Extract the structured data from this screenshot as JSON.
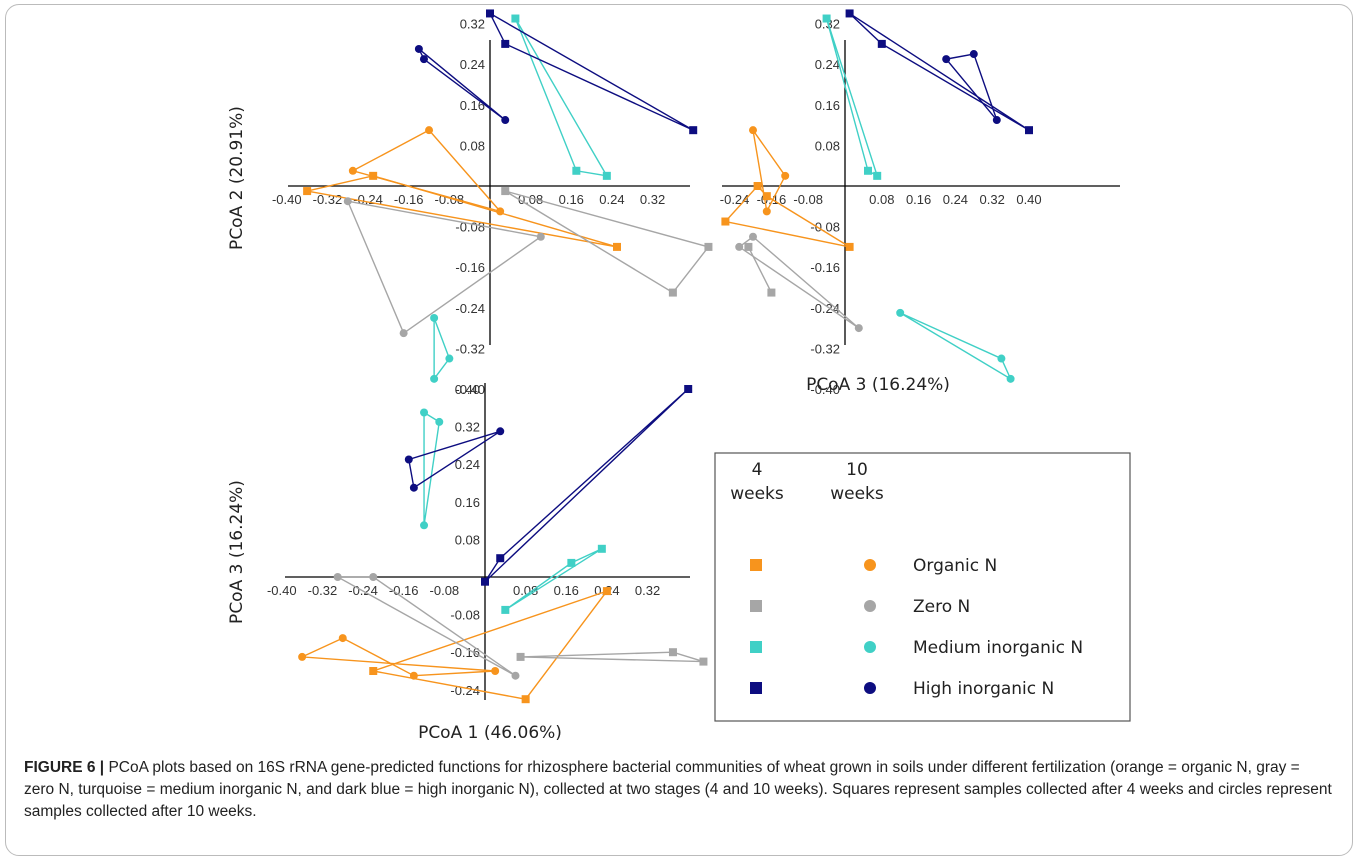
{
  "colors": {
    "organic": "#f7941d",
    "zero": "#a6a6a6",
    "medium": "#40d0c6",
    "high": "#0d0d80"
  },
  "chart_data": [
    {
      "type": "scatter",
      "panel": "top-left",
      "xlabel": "",
      "ylabel": "PCoA 2 (20.91%)",
      "x_ticks": [
        "-0.40",
        "-0.32",
        "-0.24",
        "-0.16",
        "-0.08",
        "0.08",
        "0.16",
        "0.24",
        "0.32"
      ],
      "y_ticks": [
        "0.32",
        "0.24",
        "0.16",
        "0.08",
        "-0.08",
        "-0.16",
        "-0.24",
        "-0.32",
        "-0.40"
      ],
      "xlim": [
        -0.42,
        0.4
      ],
      "ylim": [
        -0.41,
        0.36
      ],
      "series": [
        {
          "name": "Organic N",
          "week": 4,
          "marker": "square",
          "points": [
            [
              -0.36,
              -0.01
            ],
            [
              -0.23,
              0.02
            ],
            [
              0.25,
              -0.12
            ]
          ]
        },
        {
          "name": "Organic N",
          "week": 10,
          "marker": "circle",
          "points": [
            [
              -0.27,
              0.03
            ],
            [
              -0.12,
              0.11
            ],
            [
              0.02,
              -0.05
            ]
          ]
        },
        {
          "name": "Zero N",
          "week": 4,
          "marker": "square",
          "points": [
            [
              0.03,
              -0.01
            ],
            [
              0.36,
              -0.21
            ],
            [
              0.43,
              -0.12
            ]
          ]
        },
        {
          "name": "Zero N",
          "week": 10,
          "marker": "circle",
          "points": [
            [
              -0.28,
              -0.03
            ],
            [
              -0.17,
              -0.29
            ],
            [
              0.1,
              -0.1
            ]
          ]
        },
        {
          "name": "Medium inorganic N",
          "week": 4,
          "marker": "square",
          "points": [
            [
              0.05,
              0.33
            ],
            [
              0.17,
              0.03
            ],
            [
              0.23,
              0.02
            ]
          ]
        },
        {
          "name": "Medium inorganic N",
          "week": 10,
          "marker": "circle",
          "points": [
            [
              -0.11,
              -0.26
            ],
            [
              -0.08,
              -0.34
            ],
            [
              -0.11,
              -0.38
            ]
          ]
        },
        {
          "name": "High inorganic N",
          "week": 4,
          "marker": "square",
          "points": [
            [
              0.0,
              0.34
            ],
            [
              0.03,
              0.28
            ],
            [
              0.4,
              0.11
            ]
          ]
        },
        {
          "name": "High inorganic N",
          "week": 10,
          "marker": "circle",
          "points": [
            [
              -0.14,
              0.27
            ],
            [
              -0.13,
              0.25
            ],
            [
              0.03,
              0.13
            ]
          ]
        }
      ]
    },
    {
      "type": "scatter",
      "panel": "top-right",
      "xlabel": "PCoA 3 (16.24%)",
      "ylabel": "",
      "x_ticks": [
        "-0.24",
        "-0.16",
        "-0.08",
        "0.08",
        "0.16",
        "0.24",
        "0.32",
        "0.40"
      ],
      "y_ticks": [
        "0.32",
        "0.24",
        "0.16",
        "0.08",
        "-0.08",
        "-0.16",
        "-0.24",
        "-0.32",
        "-0.40"
      ],
      "xlim": [
        -0.29,
        0.46
      ],
      "ylim": [
        -0.41,
        0.36
      ],
      "series": [
        {
          "name": "Organic N",
          "week": 4,
          "marker": "square",
          "points": [
            [
              -0.26,
              -0.07
            ],
            [
              -0.19,
              0.0
            ],
            [
              -0.17,
              -0.02
            ],
            [
              0.01,
              -0.12
            ]
          ]
        },
        {
          "name": "Organic N",
          "week": 10,
          "marker": "circle",
          "points": [
            [
              -0.2,
              0.11
            ],
            [
              -0.13,
              0.02
            ],
            [
              -0.17,
              -0.05
            ]
          ]
        },
        {
          "name": "Zero N",
          "week": 4,
          "marker": "square",
          "points": [
            [
              -0.21,
              -0.12
            ],
            [
              -0.16,
              -0.21
            ]
          ]
        },
        {
          "name": "Zero N",
          "week": 10,
          "marker": "circle",
          "points": [
            [
              -0.23,
              -0.12
            ],
            [
              -0.2,
              -0.1
            ],
            [
              0.03,
              -0.28
            ]
          ]
        },
        {
          "name": "Medium inorganic N",
          "week": 4,
          "marker": "square",
          "points": [
            [
              -0.04,
              0.33
            ],
            [
              0.05,
              0.03
            ],
            [
              0.07,
              0.02
            ]
          ]
        },
        {
          "name": "Medium inorganic N",
          "week": 10,
          "marker": "circle",
          "points": [
            [
              0.12,
              -0.25
            ],
            [
              0.34,
              -0.34
            ],
            [
              0.36,
              -0.38
            ]
          ]
        },
        {
          "name": "High inorganic N",
          "week": 4,
          "marker": "square",
          "points": [
            [
              0.01,
              0.34
            ],
            [
              0.08,
              0.28
            ],
            [
              0.4,
              0.11
            ]
          ]
        },
        {
          "name": "High inorganic N",
          "week": 10,
          "marker": "circle",
          "points": [
            [
              0.22,
              0.25
            ],
            [
              0.28,
              0.26
            ],
            [
              0.33,
              0.13
            ]
          ]
        }
      ]
    },
    {
      "type": "scatter",
      "panel": "bottom-left",
      "xlabel": "PCoA 1 (46.06%)",
      "ylabel": "PCoA 3 (16.24%)",
      "x_ticks": [
        "-0.40",
        "-0.32",
        "-0.24",
        "-0.16",
        "-0.08",
        "0.08",
        "0.16",
        "0.24",
        "0.32"
      ],
      "y_ticks": [
        "0.40",
        "0.32",
        "0.24",
        "0.16",
        "0.08",
        "-0.08",
        "-0.16",
        "-0.24"
      ],
      "xlim": [
        -0.42,
        0.4
      ],
      "ylim": [
        -0.27,
        0.48
      ],
      "series": [
        {
          "name": "Organic N",
          "week": 4,
          "marker": "square",
          "points": [
            [
              -0.22,
              -0.2
            ],
            [
              0.24,
              -0.03
            ],
            [
              0.08,
              -0.26
            ]
          ]
        },
        {
          "name": "Organic N",
          "week": 10,
          "marker": "circle",
          "points": [
            [
              -0.36,
              -0.17
            ],
            [
              -0.28,
              -0.13
            ],
            [
              -0.14,
              -0.21
            ],
            [
              0.02,
              -0.2
            ]
          ]
        },
        {
          "name": "Zero N",
          "week": 4,
          "marker": "square",
          "points": [
            [
              0.07,
              -0.17
            ],
            [
              0.37,
              -0.16
            ],
            [
              0.43,
              -0.18
            ]
          ]
        },
        {
          "name": "Zero N",
          "week": 10,
          "marker": "circle",
          "points": [
            [
              -0.29,
              0.0
            ],
            [
              -0.22,
              0.0
            ],
            [
              0.06,
              -0.21
            ]
          ]
        },
        {
          "name": "Medium inorganic N",
          "week": 4,
          "marker": "square",
          "points": [
            [
              0.04,
              -0.07
            ],
            [
              0.17,
              0.03
            ],
            [
              0.23,
              0.06
            ]
          ]
        },
        {
          "name": "Medium inorganic N",
          "week": 10,
          "marker": "circle",
          "points": [
            [
              -0.12,
              0.35
            ],
            [
              -0.09,
              0.33
            ],
            [
              -0.12,
              0.11
            ]
          ]
        },
        {
          "name": "High inorganic N",
          "week": 4,
          "marker": "square",
          "points": [
            [
              0.0,
              -0.01
            ],
            [
              0.03,
              0.04
            ],
            [
              0.4,
              0.4
            ]
          ]
        },
        {
          "name": "High inorganic N",
          "week": 10,
          "marker": "circle",
          "points": [
            [
              -0.15,
              0.25
            ],
            [
              -0.14,
              0.19
            ],
            [
              0.03,
              0.31
            ]
          ]
        }
      ]
    }
  ],
  "legend": {
    "header_col1": [
      "4",
      "weeks"
    ],
    "header_col2": [
      "10",
      "weeks"
    ],
    "items": [
      {
        "label": "Organic N",
        "color_key": "organic"
      },
      {
        "label": "Zero  N",
        "color_key": "zero"
      },
      {
        "label": "Medium inorganic N",
        "color_key": "medium"
      },
      {
        "label": "High inorganic N",
        "color_key": "high"
      }
    ]
  },
  "caption": {
    "figure_label": "FIGURE 6 |",
    "text": " PCoA plots based on 16S rRNA gene-predicted functions for rhizosphere bacterial communities of wheat grown in soils under different fertilization (orange = organic N, gray = zero N, turquoise = medium inorganic N, and dark blue = high inorganic N), collected at two stages (4 and 10 weeks). Squares represent samples collected after 4 weeks and circles represent samples collected after 10 weeks."
  }
}
